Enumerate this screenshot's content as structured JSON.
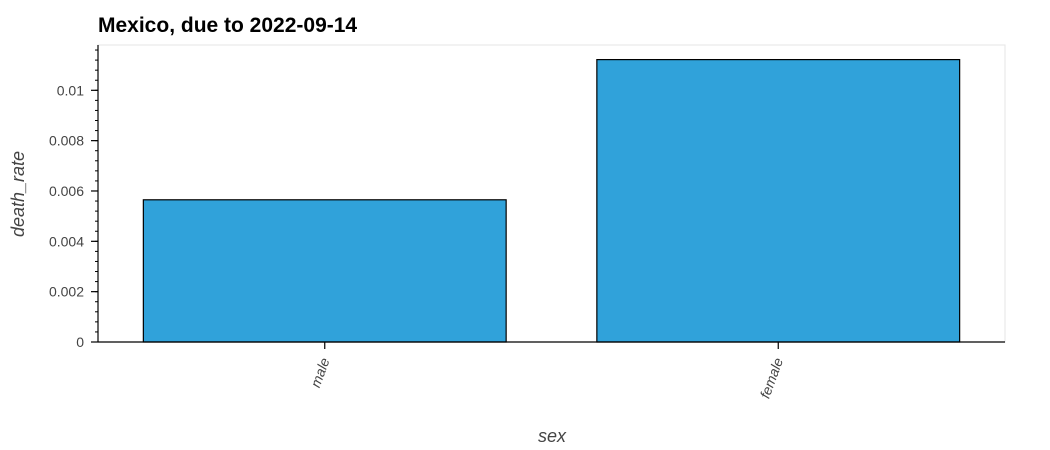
{
  "chart_data": {
    "type": "bar",
    "title": "Mexico, due to 2022-09-14",
    "xlabel": "sex",
    "ylabel": "death_rate",
    "categories": [
      "male",
      "female"
    ],
    "values": [
      0.00565,
      0.01122
    ],
    "ylim": [
      0,
      0.0118
    ],
    "yticks": [
      0,
      0.002,
      0.004,
      0.006,
      0.008,
      0.01
    ],
    "ytick_labels": [
      "0",
      "0.002",
      "0.004",
      "0.006",
      "0.008",
      "0.01"
    ],
    "grid": false,
    "colors": {
      "bar_fill": "#30a2da",
      "bar_stroke": "#000000"
    }
  }
}
